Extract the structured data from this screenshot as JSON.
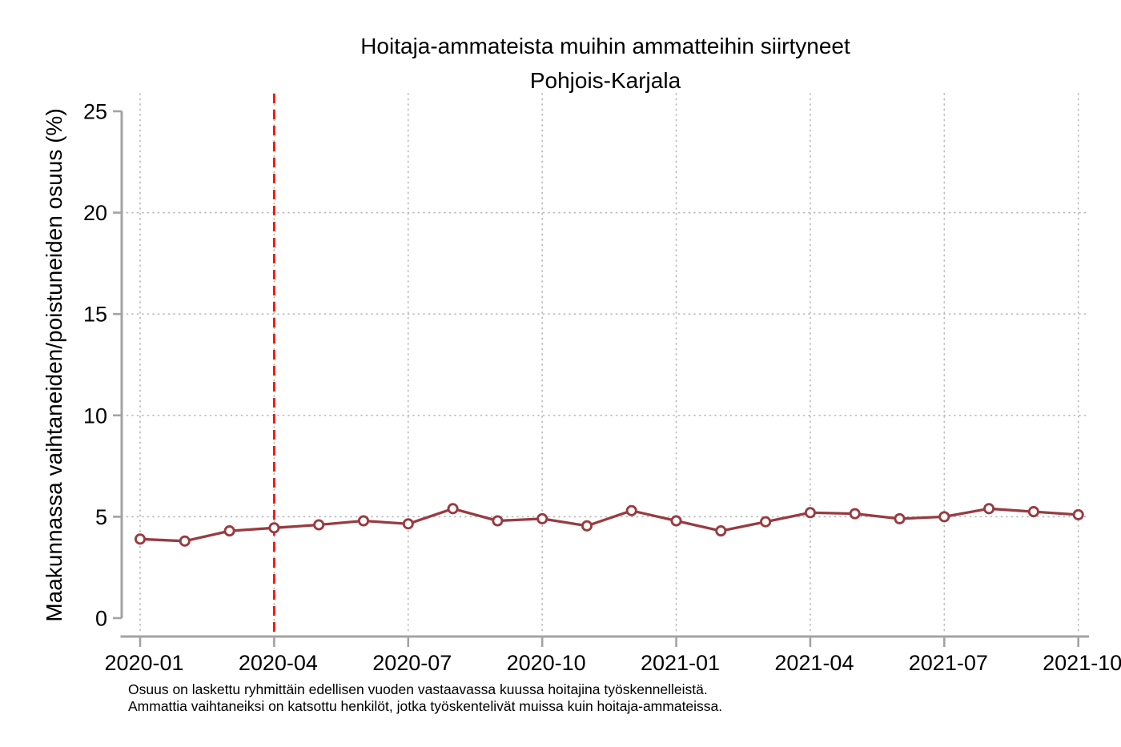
{
  "figure": {
    "notes": [
      "Osuus on laskettu ryhmittäin edellisen vuoden vastaavassa kuussa hoitajina työskennelleistä.",
      "Ammattia vaihtaneiksi on katsottu henkilöt, jotka työskentelivät muissa kuin hoitaja-ammateissa."
    ]
  },
  "chart_data": {
    "type": "line",
    "title": "Hoitaja-ammateista muihin ammatteihin siirtyneet",
    "subtitle": "Pohjois-Karjala",
    "ylabel": "Maakunnassa vaihtaneiden/poistuneiden osuus (%)",
    "xlabel": "",
    "x": [
      "2020-01",
      "2020-02",
      "2020-03",
      "2020-04",
      "2020-05",
      "2020-06",
      "2020-07",
      "2020-08",
      "2020-09",
      "2020-10",
      "2020-11",
      "2020-12",
      "2021-01",
      "2021-02",
      "2021-03",
      "2021-04",
      "2021-05",
      "2021-06",
      "2021-07",
      "2021-08",
      "2021-09",
      "2021-10"
    ],
    "series": [
      {
        "name": "Hoitaja-ammateista muihin ammatteihin siirtyneet",
        "values": [
          3.9,
          3.8,
          4.3,
          4.45,
          4.6,
          4.8,
          4.65,
          5.4,
          4.8,
          4.9,
          4.55,
          5.3,
          4.8,
          4.3,
          4.75,
          5.2,
          5.15,
          4.9,
          5.0,
          5.4,
          5.25,
          5.1
        ]
      }
    ],
    "x_tick_labels": [
      "2020-01",
      "2020-04",
      "2020-07",
      "2020-10",
      "2021-01",
      "2021-04",
      "2021-07",
      "2021-10"
    ],
    "yticks": [
      0,
      5,
      10,
      15,
      20,
      25
    ],
    "ylim": [
      0,
      25
    ],
    "grid": {
      "horizontal_at": [
        5,
        10,
        15,
        20
      ],
      "vertical_at_ticks": true,
      "style": "dotted"
    },
    "event_line": {
      "x": "2020-04",
      "style": "dashed"
    },
    "legend": "none",
    "colors": {
      "series_line": "#983b41",
      "marker_fill": "#ffffff",
      "event_line": "#fe0000",
      "grid": "#b9b9b9",
      "axis": "#a3a3a3",
      "text": "#000000"
    }
  }
}
